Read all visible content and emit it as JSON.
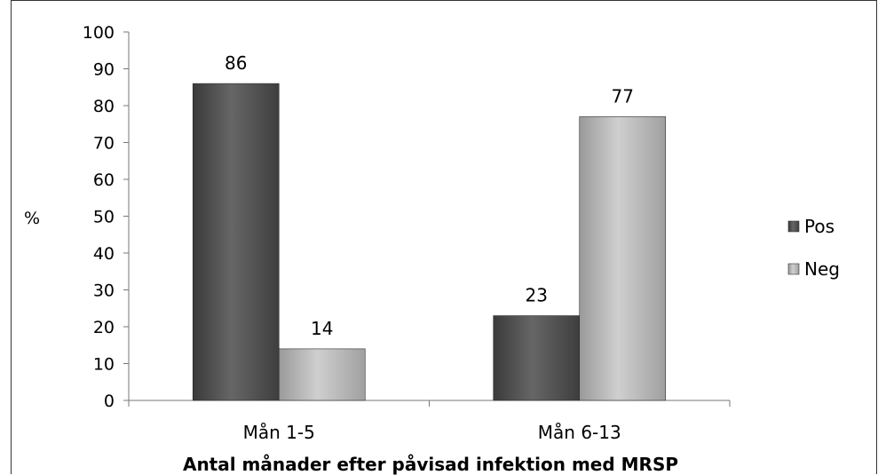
{
  "chart_data": {
    "type": "bar",
    "title": "",
    "xlabel": "Antal månader efter påvisad infektion med MRSP",
    "ylabel": "%",
    "ylim": [
      0,
      100
    ],
    "yticks": [
      "0",
      "10",
      "20",
      "30",
      "40",
      "50",
      "60",
      "70",
      "80",
      "90",
      "100"
    ],
    "categories": [
      "Mån 1-5",
      "Mån 6-13"
    ],
    "series": [
      {
        "name": "Pos",
        "values": [
          86,
          23
        ],
        "color": "#555555"
      },
      {
        "name": "Neg",
        "values": [
          14,
          77
        ],
        "color": "#b3b3b3"
      }
    ],
    "grid": false,
    "legend_position": "right",
    "data_labels": true
  }
}
